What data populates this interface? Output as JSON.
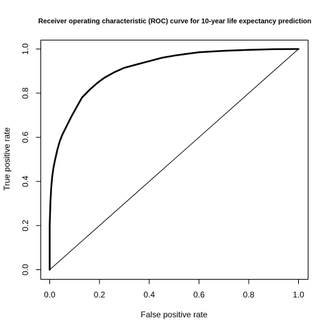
{
  "chart_data": {
    "type": "line",
    "title": "Receiver operating characteristic (ROC) curve for 10-year life expectancy prediction",
    "xlabel": "False positive rate",
    "ylabel": "True positive rate",
    "xlim": [
      0,
      1
    ],
    "ylim": [
      0,
      1
    ],
    "xticks": [
      "0.0",
      "0.2",
      "0.4",
      "0.6",
      "0.8",
      "1.0"
    ],
    "yticks": [
      "0.0",
      "0.2",
      "0.4",
      "0.6",
      "0.8",
      "1.0"
    ],
    "grid": false,
    "legend": "none",
    "series": [
      {
        "style": "thick",
        "color": "#000000",
        "x": [
          0.0,
          0.0,
          0.003,
          0.006,
          0.01,
          0.015,
          0.02,
          0.03,
          0.04,
          0.05,
          0.07,
          0.09,
          0.11,
          0.13,
          0.16,
          0.19,
          0.22,
          0.26,
          0.3,
          0.35,
          0.4,
          0.45,
          0.5,
          0.55,
          0.6,
          0.7,
          0.8,
          0.9,
          1.0
        ],
        "y": [
          0.0,
          0.2,
          0.31,
          0.37,
          0.42,
          0.46,
          0.49,
          0.54,
          0.58,
          0.61,
          0.655,
          0.7,
          0.74,
          0.78,
          0.815,
          0.845,
          0.87,
          0.895,
          0.915,
          0.93,
          0.945,
          0.96,
          0.97,
          0.978,
          0.985,
          0.992,
          0.996,
          0.999,
          1.0
        ]
      },
      {
        "style": "thin",
        "color": "#000000",
        "x": [
          0,
          1
        ],
        "y": [
          0,
          1
        ]
      }
    ]
  }
}
